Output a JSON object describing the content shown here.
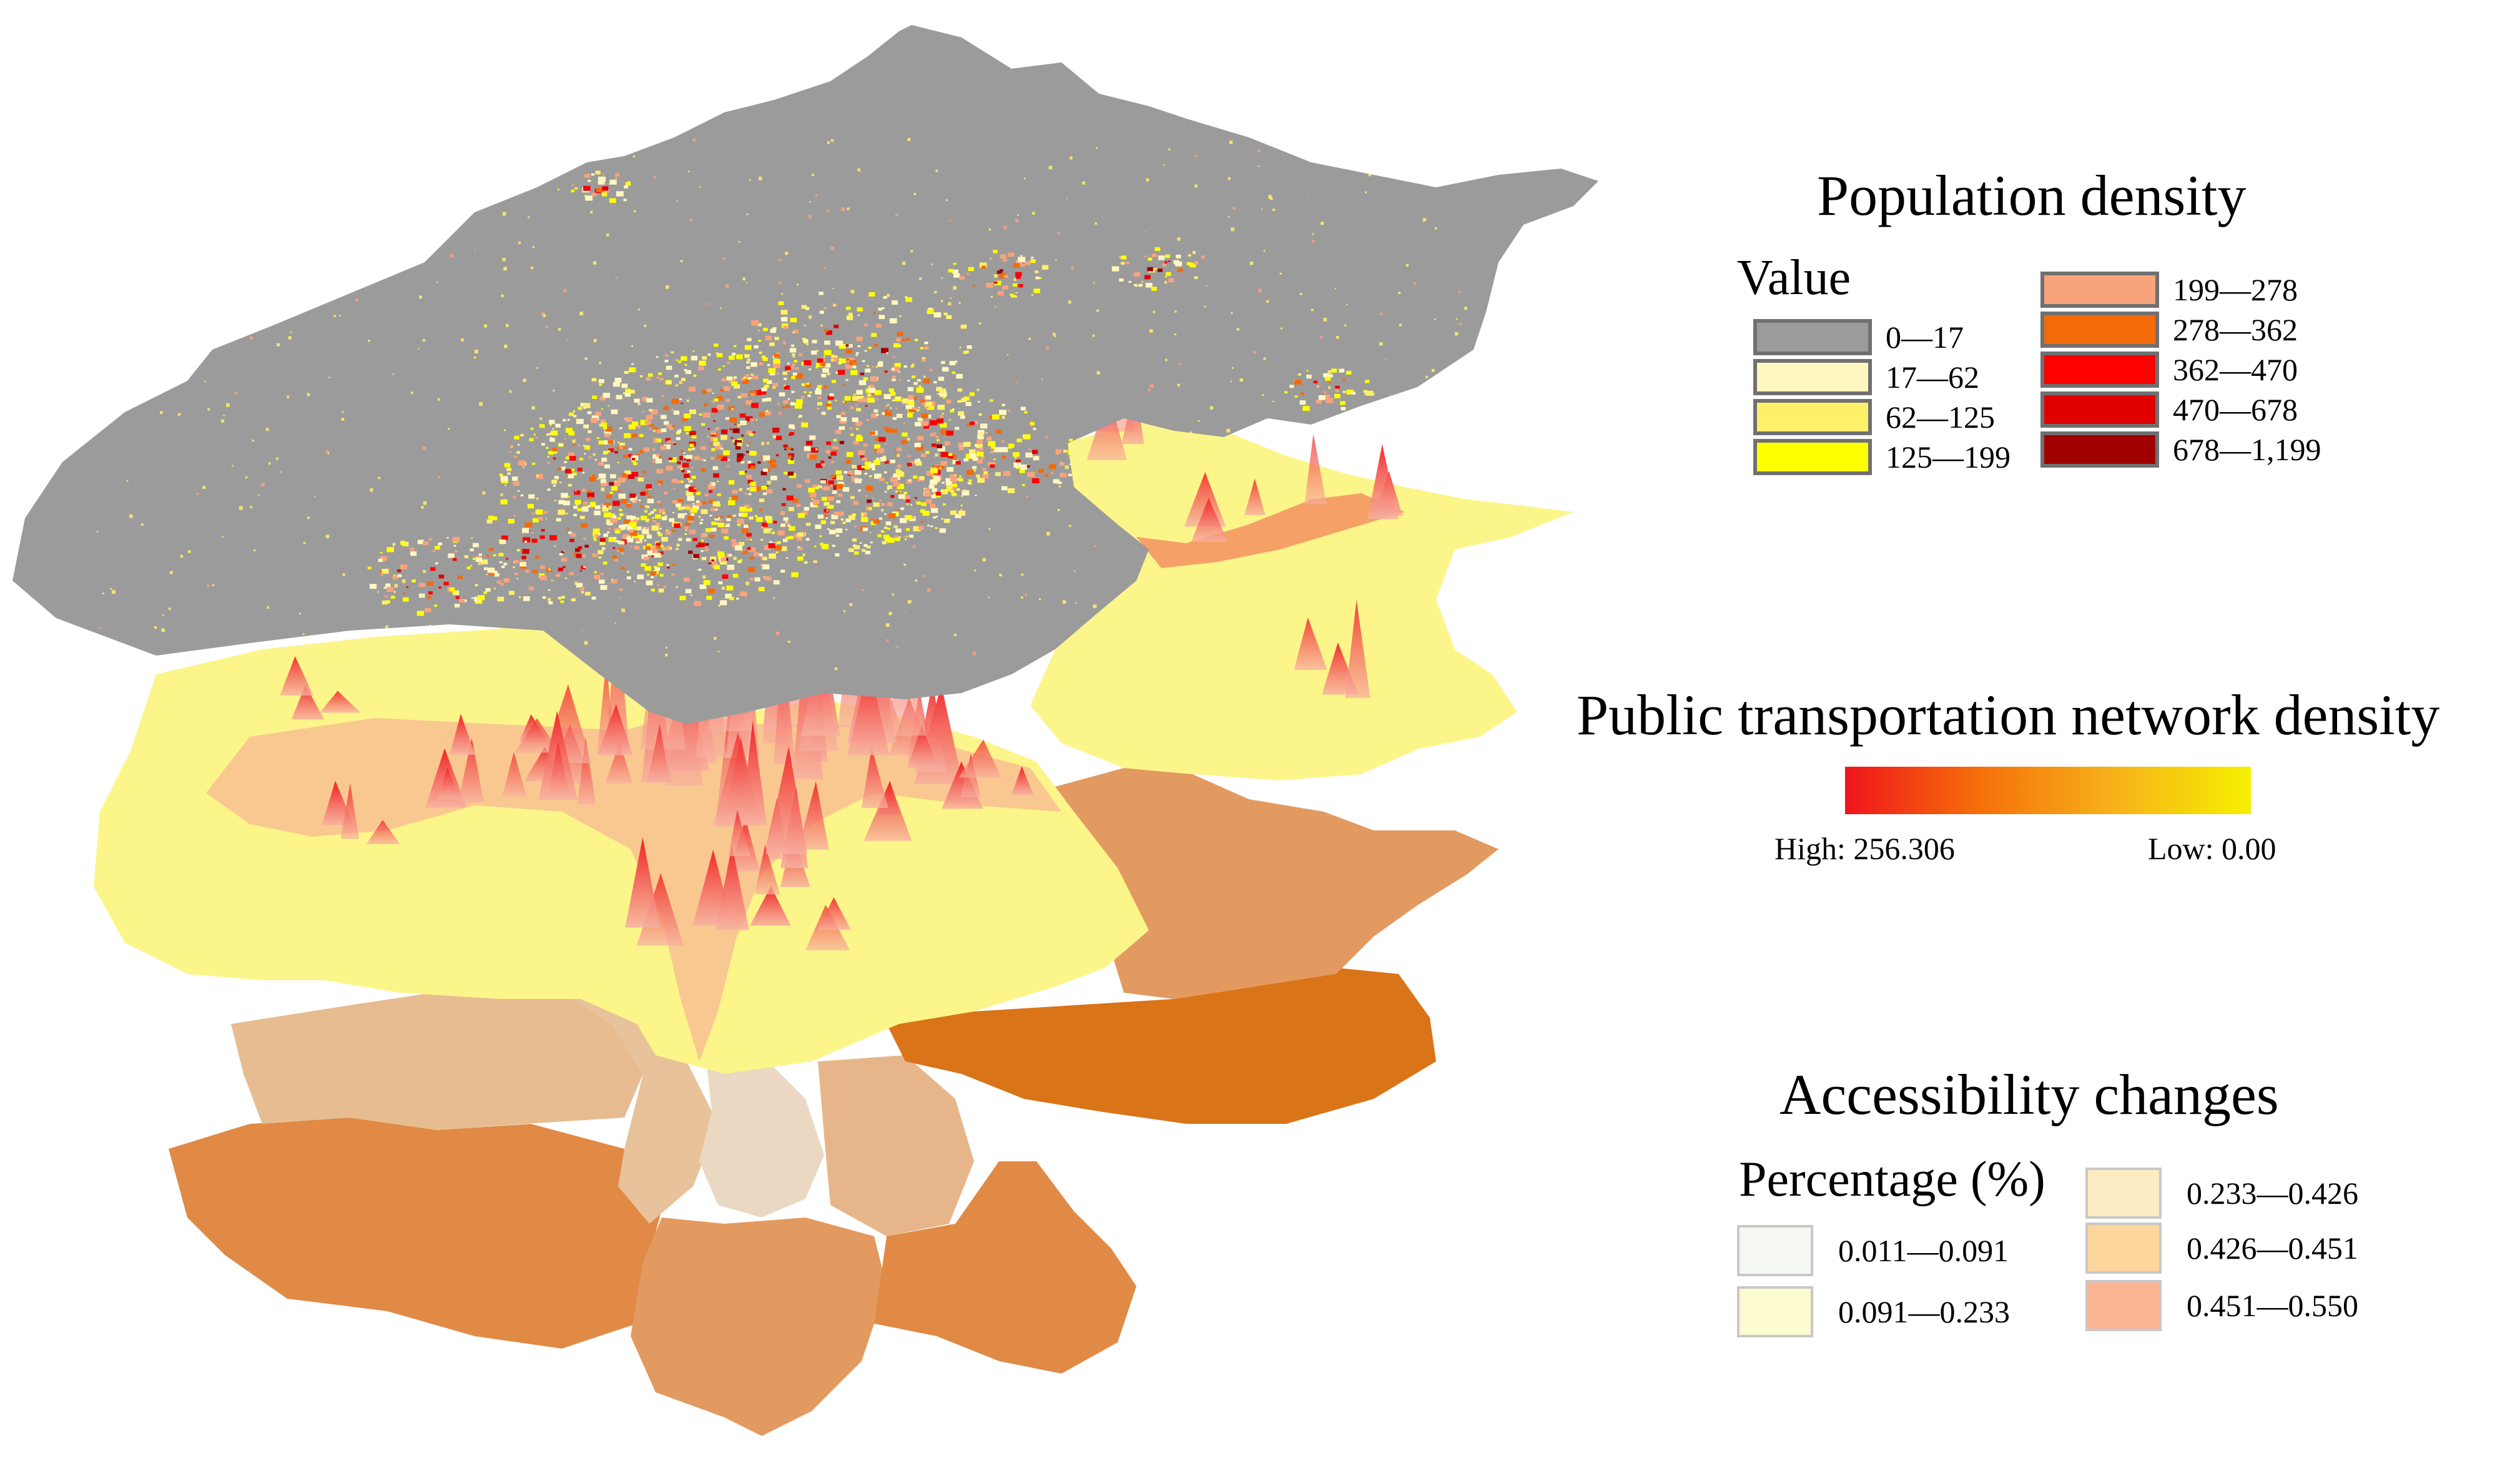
{
  "population_legend": {
    "title": "Population density",
    "subtitle": "Value",
    "classes": [
      {
        "label": "0—17",
        "color": "#9b9b9b"
      },
      {
        "label": "17—62",
        "color": "#fff7c0"
      },
      {
        "label": "62—125",
        "color": "#fff06a"
      },
      {
        "label": "125—199",
        "color": "#ffff00"
      },
      {
        "label": "199—278",
        "color": "#f9a37c"
      },
      {
        "label": "278—362",
        "color": "#f56a08"
      },
      {
        "label": "362—470",
        "color": "#ff0000"
      },
      {
        "label": "470—678",
        "color": "#e00000"
      },
      {
        "label": "678—1,199",
        "color": "#a00000"
      }
    ]
  },
  "transport_legend": {
    "title": "Public transportation network density",
    "high_label": "High: 256.306",
    "low_label": "Low: 0.00",
    "ramp_colors": [
      "#f0141c",
      "#f5700a",
      "#f7b21a",
      "#f5f000"
    ]
  },
  "accessibility_legend": {
    "title": "Accessibility changes",
    "subtitle": "Percentage (%)",
    "classes": [
      {
        "label": "0.011—0.091",
        "color": "#f4f8f1"
      },
      {
        "label": "0.091—0.233",
        "color": "#fcfbcf"
      },
      {
        "label": "0.233—0.426",
        "color": "#fdebc4"
      },
      {
        "label": "0.426—0.451",
        "color": "#fcd69a"
      },
      {
        "label": "0.451—0.550",
        "color": "#fbb592"
      }
    ]
  },
  "map_colors": {
    "population_base": "#9b9b9b",
    "transport_base": "#fcf58a",
    "transport_peak": "#f03030",
    "district_light": "#e6bc90",
    "district_mid": "#e29a60",
    "district_dark": "#d97418",
    "district_core": "#ead8c2"
  }
}
